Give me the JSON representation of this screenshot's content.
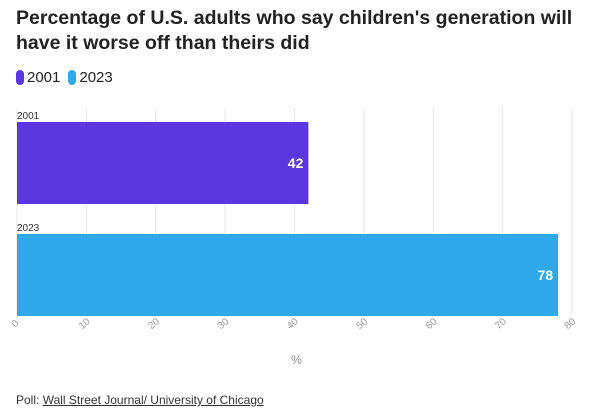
{
  "title": "Percentage of U.S. adults who say children's generation will have it worse off than theirs did",
  "legend": [
    {
      "label": "2001",
      "color": "#5a37e0"
    },
    {
      "label": "2023",
      "color": "#2fa9ea"
    }
  ],
  "footer": {
    "prefix": "Poll: ",
    "link_text": "Wall Street Journal/ University of Chicago"
  },
  "chart_data": {
    "type": "bar",
    "orientation": "horizontal",
    "categories": [
      "2001",
      "2023"
    ],
    "values": [
      42,
      78
    ],
    "colors": [
      "#5a37e0",
      "#2fa9ea"
    ],
    "data_labels": [
      "42",
      "78"
    ],
    "xlabel": "%",
    "xlim": [
      0,
      80
    ],
    "xticks": [
      0,
      10,
      20,
      30,
      40,
      50,
      60,
      70,
      80
    ],
    "grid": true
  }
}
